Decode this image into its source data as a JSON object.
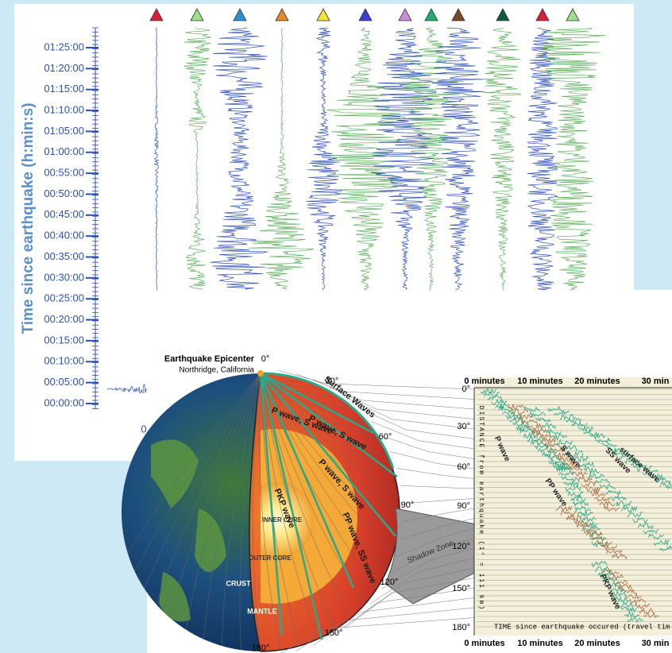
{
  "seismogram_panel": {
    "axis_title": "Time since earthquake (h:min:s)",
    "time_labels": [
      "01:25:00",
      "01:20:00",
      "01:15:00",
      "01:10:00",
      "01:05:00",
      "01:00:00",
      "00:55:00",
      "00:50:00",
      "00:45:00",
      "00:40:00",
      "00:35:00",
      "00:30:00",
      "00:25:00",
      "00:20:00",
      "00:15:00",
      "00:10:00",
      "00:05:00",
      "00:00:00"
    ],
    "axis_fragment": "0"
  },
  "earth_diagram": {
    "epicenter_title": "Earthquake Epicenter",
    "epicenter_location": "Northridge, California",
    "angles": [
      "0°",
      "30°",
      "60°",
      "90°",
      "120°",
      "150°",
      "180°"
    ],
    "wave_labels": [
      "Surface Waves",
      "P wave, S wave",
      "P wave, S wave",
      "P wave, S wave",
      "PKP wave",
      "PP wave, SS wave"
    ],
    "region_labels": [
      "INNER CORE",
      "OUTER CORE",
      "CRUST",
      "MANTLE",
      "Shadow Zone"
    ]
  },
  "travel_time_panel": {
    "time_labels_top": [
      "0 minutes",
      "10 minutes",
      "20 minutes",
      "30 min"
    ],
    "time_labels_bottom": [
      "0 minutes",
      "10 minutes",
      "20 minutes",
      "30 min"
    ],
    "distance_labels": [
      "0°",
      "30°",
      "60°",
      "90°",
      "120°",
      "150°",
      "180°"
    ],
    "distance_axis_title": "DISTANCE from earthquake (1° = 111 km)",
    "time_axis_title": "TIME since earthquake occured (travel tim",
    "wave_labels": [
      "P wave",
      "PP wave",
      "S wave",
      "SS wave",
      "surface wave",
      "PKP wave"
    ]
  }
}
